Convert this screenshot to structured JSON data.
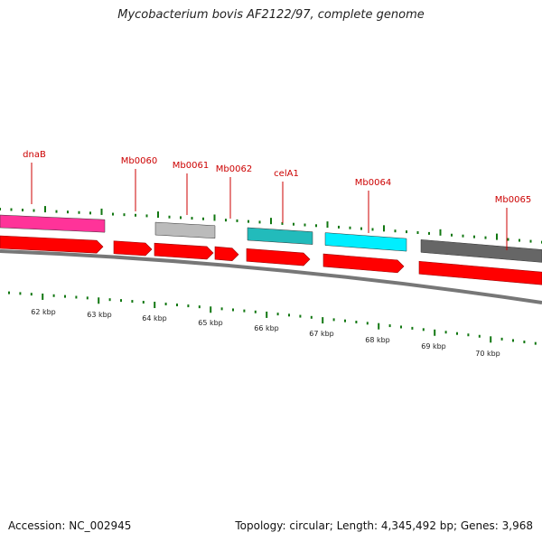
{
  "title": "Mycobacterium bovis AF2122/97, complete genome",
  "footer": {
    "accession": "Accession: NC_002945",
    "stats": "Topology: circular; Length: 4,345,492 bp; Genes: 3,968"
  },
  "colors": {
    "label": "#cc0000",
    "gene_red": "#ff0000",
    "tick": "#117711",
    "backbone": "#777777"
  },
  "genes": [
    {
      "name": "dnaB",
      "feature_color": "#ff3399"
    },
    {
      "name": "Mb0060",
      "feature_color": null
    },
    {
      "name": "Mb0061",
      "feature_color": "#bbbbbb"
    },
    {
      "name": "Mb0062",
      "feature_color": null
    },
    {
      "name": "celA1",
      "feature_color": "#22bbbb"
    },
    {
      "name": "Mb0064",
      "feature_color": "#00eeff"
    },
    {
      "name": "Mb0065",
      "feature_color": "#666666"
    }
  ],
  "kbp_labels": [
    "62 kbp",
    "63 kbp",
    "64 kbp",
    "65 kbp",
    "66 kbp",
    "67 kbp",
    "68 kbp",
    "69 kbp",
    "70 kbp"
  ]
}
